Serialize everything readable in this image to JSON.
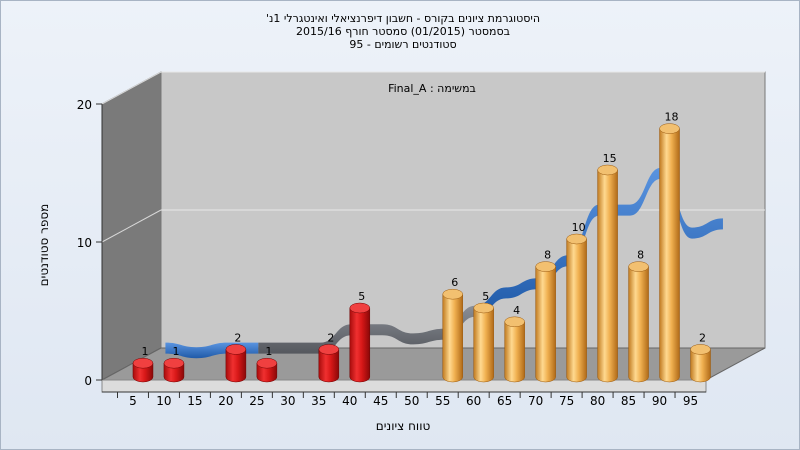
{
  "chart_data": {
    "type": "bar",
    "title_lines": [
      "היסטוגרמת ציונים בקורס - חשבון דיפרנציאלי ואינטגרלי 1נ'",
      "בסמסטר  (01/2015)  סמסטר חורף 2015/16",
      "סטודנטים רשומים - 95"
    ],
    "annotation": "במשימה : Final_A",
    "xlabel": "טווח ציונים",
    "ylabel": "מספר סטודנטים",
    "ylim": [
      0,
      20
    ],
    "yticks": [
      0,
      10,
      20
    ],
    "categories": [
      5,
      10,
      15,
      20,
      25,
      30,
      35,
      40,
      45,
      50,
      55,
      60,
      65,
      70,
      75,
      80,
      85,
      90,
      95
    ],
    "values": [
      1,
      1,
      0,
      2,
      1,
      0,
      2,
      5,
      0,
      0,
      6,
      5,
      4,
      8,
      10,
      15,
      8,
      18,
      2
    ],
    "bar_colors": {
      "fail": "#d81818",
      "pass": "#e8a440"
    },
    "pass_threshold": 55,
    "trend_ribbon": {
      "colors": [
        "#3a74c8",
        "#6a6e76"
      ],
      "grey_x_range": [
        20,
        55
      ]
    },
    "grid": true,
    "legend": "none"
  }
}
